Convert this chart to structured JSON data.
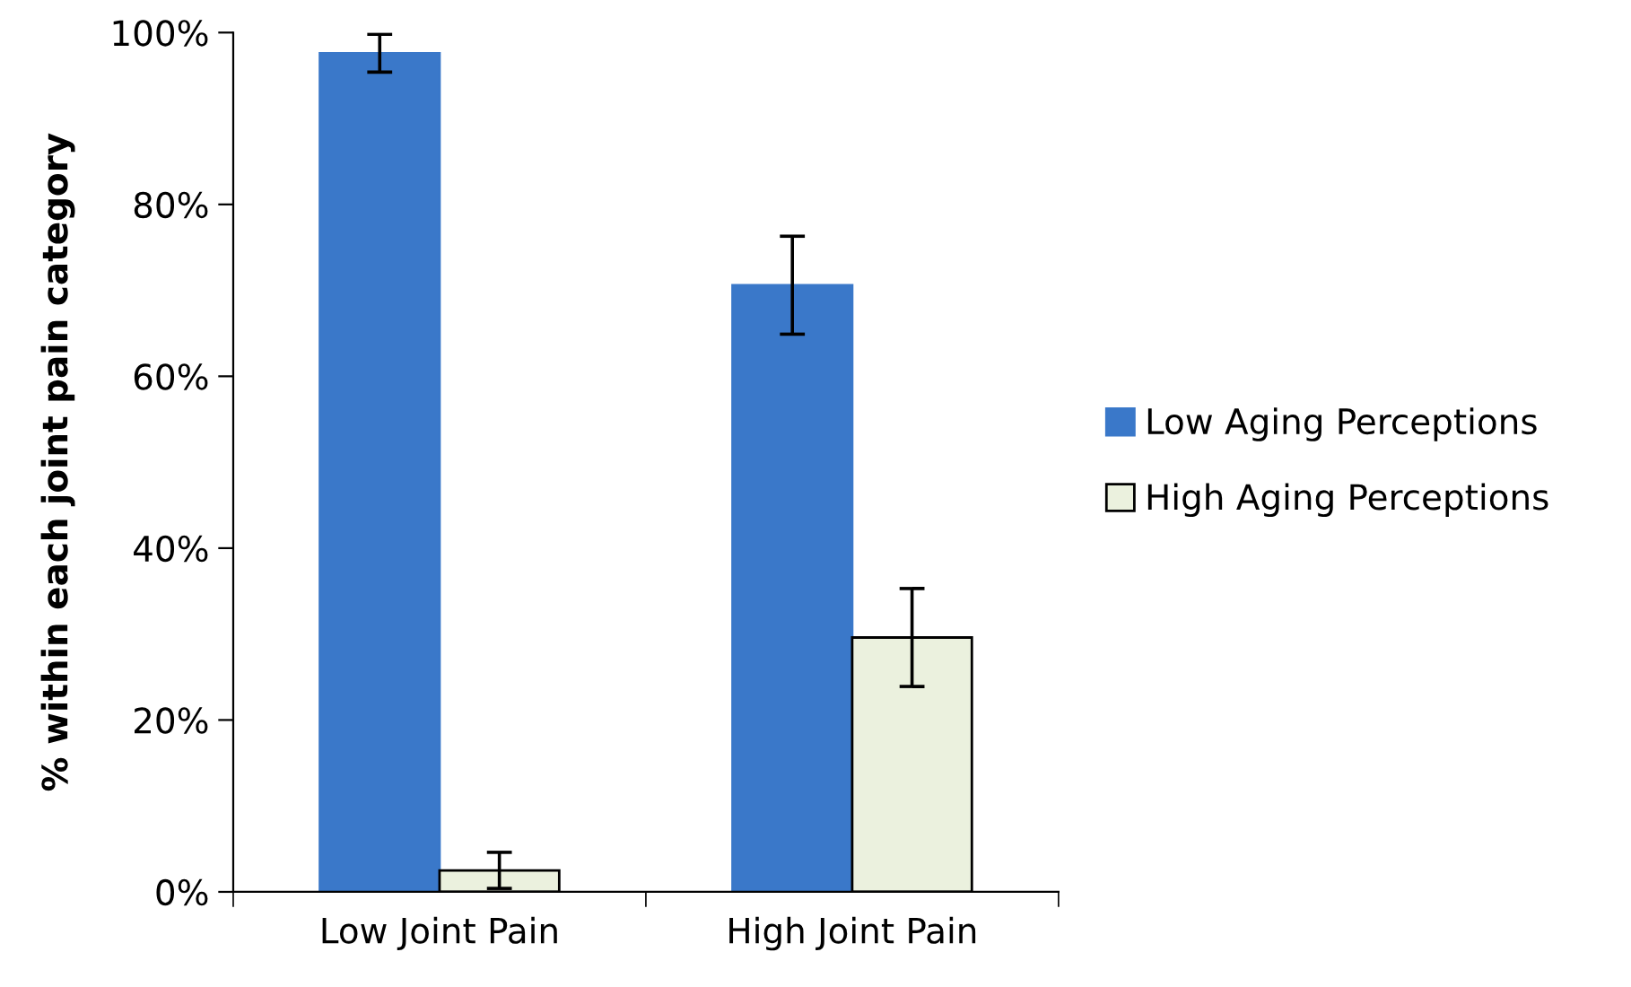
{
  "chart_data": {
    "type": "bar",
    "ylabel": "% within each joint pain category",
    "categories": [
      "Low Joint Pain",
      "High Joint Pain"
    ],
    "series": [
      {
        "name": "Low Aging Perceptions",
        "color": "#3a78c9",
        "values": [
          97.6,
          70.6
        ],
        "errors": [
          2.2,
          5.7
        ]
      },
      {
        "name": "High Aging Perceptions",
        "color": "#ebf1de",
        "values": [
          2.5,
          29.6
        ],
        "errors": [
          2.1,
          5.7
        ]
      }
    ],
    "ylim": [
      0,
      100
    ],
    "yticks": [
      {
        "value": 0,
        "label": "0%"
      },
      {
        "value": 20,
        "label": "20%"
      },
      {
        "value": 40,
        "label": "40%"
      },
      {
        "value": 60,
        "label": "60%"
      },
      {
        "value": 80,
        "label": "80%"
      },
      {
        "value": 100,
        "label": "100%"
      }
    ],
    "legend": "right",
    "grid": false
  }
}
